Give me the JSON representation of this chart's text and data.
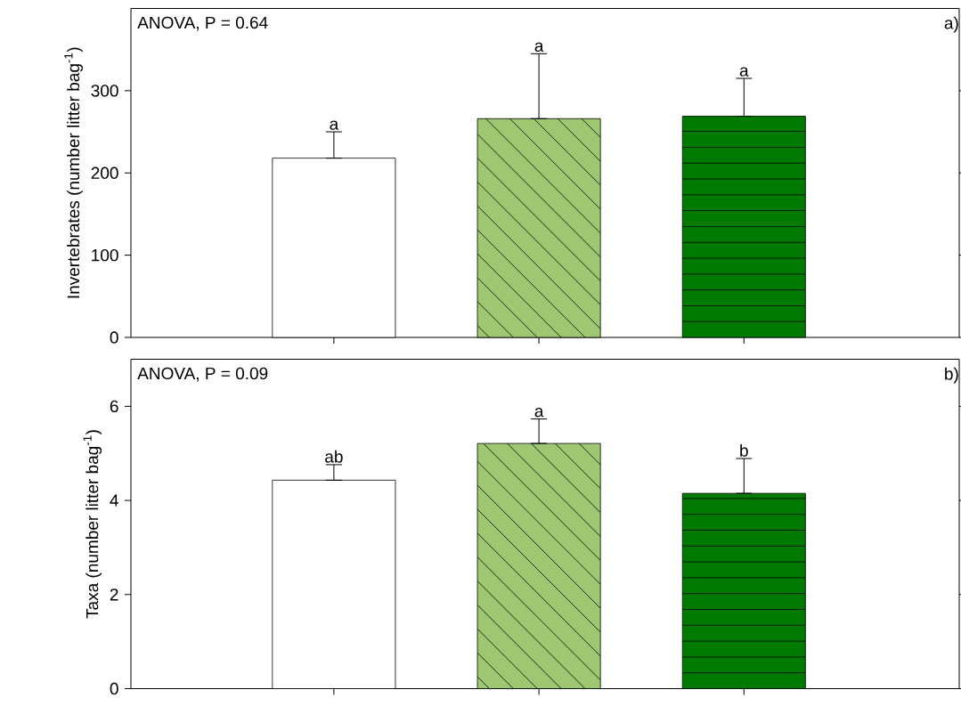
{
  "chart_data": [
    {
      "type": "bar",
      "categories": [
        null,
        null,
        null
      ],
      "ylabel": "Invertebrates (number litter bag$^{-1}$)",
      "values": [
        218,
        266,
        269
      ],
      "colors": [
        "#ffffff",
        "#9fc670",
        "#007a00"
      ],
      "errors": [
        [
          218,
          250
        ],
        [
          266,
          345
        ],
        [
          269,
          315
        ]
      ],
      "ylim": [
        0,
        400
      ],
      "yticks": [
        0,
        100,
        200,
        300
      ],
      "annotations": [
        "ANOVA, P = 0.64",
        "a)",
        "a",
        "a",
        "a"
      ]
    },
    {
      "type": "bar",
      "categories": [
        null,
        null,
        null
      ],
      "ylabel": "Taxa (number litter bag$^{-1}$)",
      "values": [
        4.43,
        5.21,
        4.15
      ],
      "colors": [
        "#ffffff",
        "#9fc670",
        "#007a00"
      ],
      "errors": [
        [
          4.43,
          4.76
        ],
        [
          5.21,
          5.73
        ],
        [
          4.15,
          4.89
        ]
      ],
      "ylim": [
        0,
        7
      ],
      "yticks": [
        0,
        2,
        4,
        6
      ],
      "annotations": [
        "ANOVA, P = 0.09",
        "b)",
        "ab",
        "a",
        "b"
      ]
    }
  ]
}
